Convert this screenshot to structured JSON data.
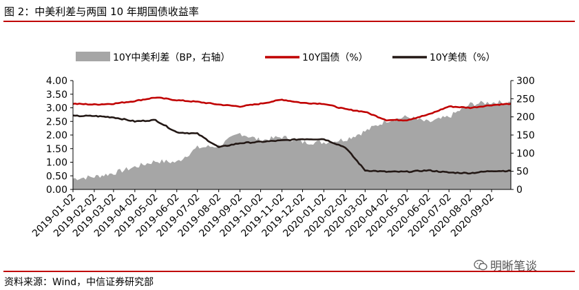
{
  "header": {
    "title": "图 2：中美利差与两国 10 年期国债收益率"
  },
  "footer": {
    "source": "资料来源：Wind，中信证券研究部",
    "watermark": "明晰笔谈"
  },
  "chart_data": {
    "type": "line",
    "title": "图 2：中美利差与两国 10 年期国债收益率",
    "legend_position": "top",
    "grid": false,
    "x_labels": [
      "2019-01-02",
      "2019-02-02",
      "2019-03-02",
      "2019-04-02",
      "2019-05-02",
      "2019-06-02",
      "2019-07-02",
      "2019-08-02",
      "2019-09-02",
      "2019-10-02",
      "2019-11-02",
      "2019-12-02",
      "2020-01-02",
      "2020-02-02",
      "2020-03-02",
      "2020-04-02",
      "2020-05-02",
      "2020-06-02",
      "2020-07-02",
      "2020-08-02",
      "2020-09-02"
    ],
    "y_left": {
      "range": [
        0,
        4
      ],
      "ticks": [
        "0.00",
        "0.50",
        "1.00",
        "1.50",
        "2.00",
        "2.50",
        "3.00",
        "3.50",
        "4.00"
      ]
    },
    "y_right": {
      "range": [
        0,
        300
      ],
      "ticks": [
        "0",
        "50",
        "100",
        "150",
        "200",
        "250",
        "300"
      ]
    },
    "series": [
      {
        "name": "10Y中美利差（BP，右轴）",
        "type": "area",
        "axis": "right",
        "color": "#a6a6a6",
        "x": [
          "2019-01-02",
          "2019-02-02",
          "2019-03-02",
          "2019-04-02",
          "2019-05-02",
          "2019-06-02",
          "2019-07-02",
          "2019-08-02",
          "2019-09-02",
          "2019-10-02",
          "2019-11-02",
          "2019-12-02",
          "2020-01-02",
          "2020-02-02",
          "2020-03-02",
          "2020-04-02",
          "2020-05-02",
          "2020-06-02",
          "2020-07-02",
          "2020-08-02",
          "2020-09-02",
          "2020-09-30"
        ],
        "values": [
          30,
          35,
          45,
          62,
          78,
          75,
          115,
          120,
          155,
          135,
          145,
          130,
          130,
          138,
          160,
          190,
          200,
          185,
          200,
          235,
          240,
          240
        ]
      },
      {
        "name": "10Y国债（%）",
        "type": "line",
        "axis": "left",
        "color": "#c00000",
        "x": [
          "2019-01-02",
          "2019-02-02",
          "2019-03-02",
          "2019-04-02",
          "2019-05-02",
          "2019-06-02",
          "2019-07-02",
          "2019-08-02",
          "2019-09-02",
          "2019-10-02",
          "2019-11-02",
          "2019-12-02",
          "2020-01-02",
          "2020-02-02",
          "2020-03-02",
          "2020-04-02",
          "2020-05-02",
          "2020-06-02",
          "2020-07-02",
          "2020-08-02",
          "2020-09-02",
          "2020-09-30"
        ],
        "values": [
          3.15,
          3.12,
          3.15,
          3.25,
          3.38,
          3.28,
          3.22,
          3.12,
          3.05,
          3.15,
          3.3,
          3.18,
          3.15,
          2.95,
          2.85,
          2.55,
          2.55,
          2.75,
          3.05,
          3.0,
          3.1,
          3.15
        ]
      },
      {
        "name": "10Y美债（%）",
        "type": "line",
        "axis": "left",
        "color": "#231815",
        "x": [
          "2019-01-02",
          "2019-02-02",
          "2019-03-02",
          "2019-04-02",
          "2019-05-02",
          "2019-06-02",
          "2019-07-02",
          "2019-08-02",
          "2019-09-02",
          "2019-10-02",
          "2019-11-02",
          "2019-12-02",
          "2020-01-02",
          "2020-02-02",
          "2020-03-02",
          "2020-04-02",
          "2020-05-02",
          "2020-06-02",
          "2020-07-02",
          "2020-08-02",
          "2020-09-02",
          "2020-09-30"
        ],
        "values": [
          2.7,
          2.7,
          2.65,
          2.5,
          2.55,
          2.1,
          2.05,
          1.55,
          1.7,
          1.75,
          1.8,
          1.85,
          1.85,
          1.55,
          0.7,
          0.65,
          0.65,
          0.7,
          0.62,
          0.6,
          0.68,
          0.68
        ]
      }
    ]
  }
}
